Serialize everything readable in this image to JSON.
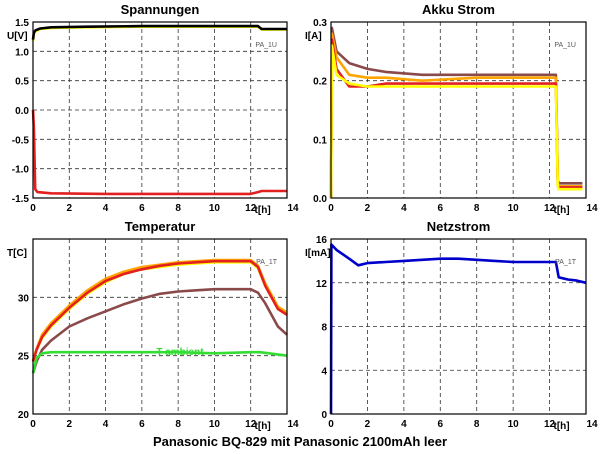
{
  "figure_title": "Panasonic BQ-829 mit Panasonic 2100mAh leer",
  "colors": {
    "cell1": "#ffff00",
    "cell2": "#ffa500",
    "cell3": "#e32020",
    "cell4": "#8b4a4a",
    "cell_total": "#000000",
    "ambient": "#33dd33",
    "netz": "#0000cc"
  },
  "chart_data": [
    {
      "type": "line",
      "title": "Spannungen",
      "xlabel": "t[h]",
      "ylabel": "U[V]",
      "tag": "PA_1U",
      "xlim": [
        0,
        14
      ],
      "ylim": [
        -1.5,
        1.5
      ],
      "xticks": [
        "0",
        "2",
        "4",
        "6",
        "8",
        "10",
        "12",
        "14"
      ],
      "yticks": [
        "-1.5",
        "-1.0",
        "-0.5",
        "0.0",
        "0.5",
        "1.0",
        "1.5"
      ],
      "grid": true,
      "series": [
        {
          "color": "#e32020",
          "x": [
            0,
            0.05,
            0.12,
            0.25,
            1,
            4,
            8,
            10,
            12,
            12.4,
            12.6,
            13.5,
            14
          ],
          "y": [
            0.0,
            -0.3,
            -1.35,
            -1.4,
            -1.42,
            -1.43,
            -1.43,
            -1.43,
            -1.43,
            -1.4,
            -1.38,
            -1.38,
            -1.38
          ]
        },
        {
          "color": "#ffff00",
          "x": [
            0,
            0.05,
            0.15,
            0.4,
            1,
            3,
            6,
            9,
            12,
            12.4,
            12.6,
            14
          ],
          "y": [
            1.18,
            1.3,
            1.34,
            1.38,
            1.4,
            1.41,
            1.42,
            1.42,
            1.42,
            1.42,
            1.37,
            1.37
          ]
        },
        {
          "color": "#000000",
          "x": [
            0,
            0.05,
            0.15,
            0.4,
            1,
            3,
            6,
            9,
            12,
            12.4,
            12.6,
            14
          ],
          "y": [
            1.2,
            1.32,
            1.36,
            1.39,
            1.41,
            1.42,
            1.43,
            1.43,
            1.43,
            1.43,
            1.38,
            1.38
          ]
        }
      ]
    },
    {
      "type": "line",
      "title": "Akku Strom",
      "xlabel": "t[h]",
      "ylabel": "I[A]",
      "tag": "PA_1U",
      "xlim": [
        0,
        14
      ],
      "ylim": [
        0,
        0.3
      ],
      "xticks": [
        "0",
        "2",
        "4",
        "6",
        "8",
        "10",
        "12",
        "14"
      ],
      "yticks": [
        "0.0",
        "0.1",
        "0.2",
        "0.3"
      ],
      "grid": true,
      "series": [
        {
          "color": "#8b4a4a",
          "x": [
            0,
            0.05,
            0.3,
            1,
            2,
            3,
            5,
            8,
            10,
            12.3,
            12.35,
            12.45,
            12.5,
            13.8
          ],
          "y": [
            0,
            0.29,
            0.25,
            0.23,
            0.22,
            0.215,
            0.21,
            0.21,
            0.21,
            0.21,
            0.21,
            0.03,
            0.025,
            0.025
          ]
        },
        {
          "color": "#ffa500",
          "x": [
            0,
            0.05,
            0.3,
            1,
            2,
            3,
            5,
            8,
            10,
            12.3,
            12.35,
            12.45,
            12.5,
            13.8
          ],
          "y": [
            0,
            0.28,
            0.24,
            0.21,
            0.205,
            0.205,
            0.2,
            0.205,
            0.205,
            0.205,
            0.205,
            0.025,
            0.02,
            0.02
          ]
        },
        {
          "color": "#e32020",
          "x": [
            0,
            0.05,
            0.3,
            1,
            2,
            3,
            5,
            8,
            10,
            12.3,
            12.35,
            12.45,
            12.5,
            13.8
          ],
          "y": [
            0,
            0.27,
            0.22,
            0.19,
            0.19,
            0.195,
            0.195,
            0.195,
            0.195,
            0.195,
            0.195,
            0.02,
            0.018,
            0.018
          ]
        },
        {
          "color": "#ffff00",
          "x": [
            0,
            0.05,
            0.3,
            1,
            2,
            3,
            5,
            8,
            10,
            12.3,
            12.35,
            12.45,
            12.5,
            13.8
          ],
          "y": [
            0,
            0.26,
            0.21,
            0.195,
            0.19,
            0.19,
            0.19,
            0.19,
            0.19,
            0.19,
            0.19,
            0.02,
            0.015,
            0.015
          ]
        }
      ]
    },
    {
      "type": "line",
      "title": "Temperatur",
      "xlabel": "t[h]",
      "ylabel": "T[C]",
      "tag": "PA_1T",
      "annotation": "T ambient",
      "xlim": [
        0,
        14
      ],
      "ylim": [
        20,
        35
      ],
      "xticks": [
        "0",
        "2",
        "4",
        "6",
        "8",
        "10",
        "12",
        "14"
      ],
      "yticks": [
        "20",
        "25",
        "30"
      ],
      "grid": true,
      "series": [
        {
          "color": "#ffff00",
          "x": [
            0,
            0.2,
            0.5,
            1,
            2,
            3,
            4,
            5,
            6,
            7,
            8,
            9,
            10,
            11,
            12,
            12.4,
            12.8,
            13.5,
            14
          ],
          "y": [
            24.5,
            25.5,
            26.5,
            27.5,
            29.0,
            30.3,
            31.3,
            32.0,
            32.4,
            32.6,
            32.8,
            32.9,
            33.0,
            33.0,
            33.0,
            32.5,
            31,
            29,
            28.5
          ]
        },
        {
          "color": "#ffa500",
          "x": [
            0,
            0.2,
            0.5,
            1,
            2,
            3,
            4,
            5,
            6,
            7,
            8,
            9,
            10,
            11,
            12,
            12.4,
            12.8,
            13.5,
            14
          ],
          "y": [
            24.6,
            25.6,
            26.8,
            27.8,
            29.3,
            30.6,
            31.6,
            32.2,
            32.6,
            32.8,
            33.0,
            33.1,
            33.2,
            33.2,
            33.2,
            32.7,
            31.2,
            29.2,
            28.7
          ]
        },
        {
          "color": "#e32020",
          "x": [
            0,
            0.2,
            0.5,
            1,
            2,
            3,
            4,
            5,
            6,
            7,
            8,
            9,
            10,
            11,
            12,
            12.4,
            12.8,
            13.5,
            14
          ],
          "y": [
            24.5,
            25.5,
            26.6,
            27.6,
            29.1,
            30.4,
            31.4,
            32.0,
            32.4,
            32.7,
            32.9,
            33.0,
            33.1,
            33.1,
            33.1,
            32.6,
            31.0,
            29.0,
            28.5
          ]
        },
        {
          "color": "#8b4a4a",
          "x": [
            0,
            0.2,
            0.5,
            1,
            2,
            3,
            4,
            5,
            6,
            7,
            8,
            9,
            10,
            11,
            12,
            12.4,
            12.8,
            13.5,
            14
          ],
          "y": [
            23.5,
            24.5,
            25.5,
            26.3,
            27.5,
            28.2,
            28.8,
            29.4,
            29.9,
            30.3,
            30.5,
            30.6,
            30.7,
            30.7,
            30.7,
            30.4,
            29.5,
            27.5,
            26.8
          ]
        },
        {
          "color": "#33dd33",
          "x": [
            0,
            0.2,
            0.5,
            1,
            2,
            4,
            6,
            8,
            10,
            12,
            12.5,
            13,
            14
          ],
          "y": [
            23.5,
            24.8,
            25.2,
            25.3,
            25.3,
            25.3,
            25.3,
            25.3,
            25.2,
            25.3,
            25.3,
            25.2,
            25.0
          ]
        }
      ]
    },
    {
      "type": "line",
      "title": "Netzstrom",
      "xlabel": "t[h]",
      "ylabel": "I[mA]",
      "tag": "PA_1T",
      "xlim": [
        0,
        14
      ],
      "ylim": [
        0,
        16
      ],
      "xticks": [
        "0",
        "2",
        "4",
        "6",
        "8",
        "10",
        "12",
        "14"
      ],
      "yticks": [
        "0",
        "4",
        "8",
        "12",
        "16"
      ],
      "grid": true,
      "series": [
        {
          "color": "#0000cc",
          "x": [
            0,
            0.02,
            0.3,
            1,
            1.5,
            2,
            3,
            4,
            5,
            6,
            7,
            8,
            9,
            10,
            11,
            12,
            12.35,
            12.5,
            13,
            13.5,
            14
          ],
          "y": [
            0,
            15.5,
            15.0,
            14.2,
            13.6,
            13.8,
            13.9,
            14.0,
            14.1,
            14.2,
            14.2,
            14.1,
            14.0,
            13.9,
            13.9,
            13.9,
            13.9,
            12.5,
            12.3,
            12.2,
            12.0
          ]
        }
      ]
    }
  ]
}
